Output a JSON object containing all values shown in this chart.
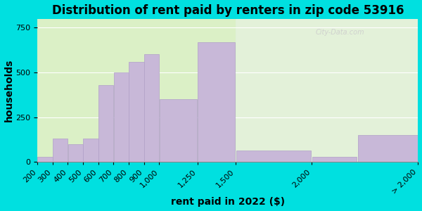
{
  "title": "Distribution of rent paid by renters in zip code 53916",
  "xlabel": "rent paid in 2022 ($)",
  "ylabel": "households",
  "bar_labels": [
    "200",
    "300",
    "400",
    "500",
    "600",
    "700",
    "800",
    "900",
    "1,000",
    "1,250",
    "1,500",
    "2,000",
    "> 2,000"
  ],
  "bar_values": [
    30,
    130,
    100,
    130,
    430,
    500,
    560,
    600,
    350,
    670,
    65,
    30,
    150
  ],
  "bar_left_edges": [
    200,
    300,
    400,
    500,
    600,
    700,
    800,
    900,
    1000,
    1250,
    1500,
    2000,
    2300
  ],
  "bar_widths": [
    100,
    100,
    100,
    100,
    100,
    100,
    100,
    100,
    250,
    250,
    500,
    300,
    400
  ],
  "bar_color": "#c8b8d8",
  "bar_edge_color": "#b0a0c8",
  "ylim": [
    0,
    800
  ],
  "yticks": [
    0,
    250,
    500,
    750
  ],
  "bg_outer": "#00e0e0",
  "bg_inner": "#e0f0d0",
  "bg_inner_right": "#e8f5e8",
  "watermark": "City-Data.com",
  "title_fontsize": 12,
  "axis_label_fontsize": 10,
  "tick_label_fontsize": 8,
  "tick_positions": [
    200,
    300,
    400,
    500,
    600,
    700,
    800,
    900,
    1000,
    1250,
    1500,
    2000,
    2700
  ],
  "tick_labels": [
    "200",
    "300",
    "400",
    "500",
    "600",
    "700",
    "800",
    "900",
    "1,000",
    "1,250",
    "1,500",
    "2,000",
    "> 2,000"
  ]
}
